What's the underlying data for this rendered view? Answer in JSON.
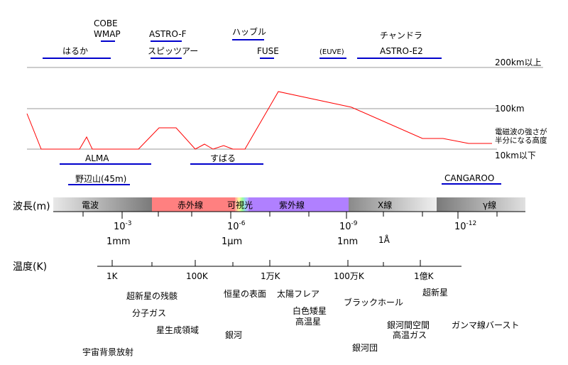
{
  "satellites": [
    {
      "label": "COBE"
    },
    {
      "label": "WMAP"
    },
    {
      "label": "はるか"
    },
    {
      "label": "ASTRO-F"
    },
    {
      "label": "スピッツアー"
    },
    {
      "label": "ハッブル"
    },
    {
      "label": "FUSE"
    },
    {
      "label": "(EUVE)"
    },
    {
      "label": "チャンドラ"
    },
    {
      "label": "ASTRO-E2"
    }
  ],
  "ground": [
    {
      "label": "ALMA"
    },
    {
      "label": "すばる"
    },
    {
      "label": "野辺山(45m)"
    },
    {
      "label": "CANGAROO"
    }
  ],
  "altitude_labels": {
    "high": "200km以上",
    "mid": "100km",
    "low": "10km以下"
  },
  "absorption_note": [
    "電磁波の強さが",
    "半分になる高度"
  ],
  "wavelength": {
    "axis_label": "波長(m)",
    "bands": [
      {
        "name": "電波",
        "color": "#808080"
      },
      {
        "name": "赤外線",
        "color": "#ff8080"
      },
      {
        "name": "可視光",
        "color": "#ffff80"
      },
      {
        "name": "紫外線",
        "color": "#b080ff"
      },
      {
        "name": "X線",
        "color": "#808080"
      },
      {
        "name": "γ線",
        "color": "#808080"
      }
    ],
    "ticks": [
      {
        "base": "10",
        "exp": "-3"
      },
      {
        "base": "10",
        "exp": "-6"
      },
      {
        "base": "10",
        "exp": "-9"
      },
      {
        "base": "10",
        "exp": "-12"
      }
    ],
    "units": [
      "1mm",
      "1μm",
      "1nm",
      "1Å"
    ]
  },
  "temperature": {
    "axis_label": "温度(K)",
    "ticks": [
      "1K",
      "100K",
      "1万K",
      "100万K",
      "1億K"
    ],
    "objects": [
      "超新星の残骸",
      "分子ガス",
      "星生成領域",
      "宇宙背景放射",
      "恒星の表面",
      "銀河",
      "太陽フレア",
      "白色矮星",
      "高温星",
      "ブラックホール",
      "銀河間空間",
      "高温ガス",
      "銀河団",
      "超新星",
      "ガンマ線バースト"
    ]
  },
  "colors": {
    "line": "#ff0000",
    "underline": "#0000cc",
    "grid": "#999999"
  }
}
